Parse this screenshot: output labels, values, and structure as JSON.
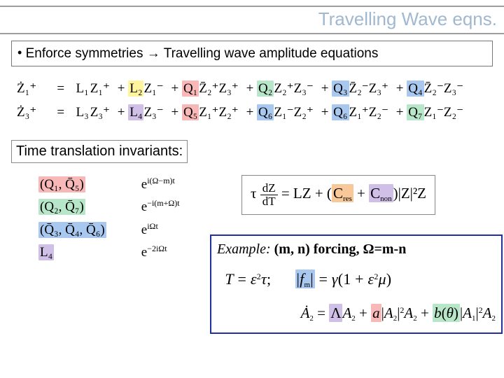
{
  "colors": {
    "title_text": "#a0b8d0",
    "rule": "#9e9e9e",
    "box_border": "#888888",
    "example_border": "#2030a0",
    "hl_yellow": "#fff59d",
    "hl_pink": "#f8b8b8",
    "hl_green": "#b8e6c8",
    "hl_blue": "#a8c8f0",
    "hl_purple": "#d0c0e8",
    "hl_orange": "#f8c898"
  },
  "title": "Travelling Wave eqns.",
  "bullet": {
    "lead": "Enforce symmetries",
    "arrow": "→",
    "tail": "Travelling wave amplitude equations"
  },
  "eqn1": {
    "lhs": "Ż₁⁺",
    "eq": "=",
    "t1": {
      "coef": "L₁",
      "color": "",
      "body": "Z₁⁺"
    },
    "t2": {
      "coef": "L₂",
      "color": "c-yellow",
      "body": "Z₁⁻"
    },
    "t3": {
      "coef": "Q₁",
      "color": "c-pink",
      "body": "Z̄₂⁺Z₃⁺"
    },
    "t4": {
      "coef": "Q₂",
      "color": "c-green",
      "body": "Z₂⁺Z₃⁻"
    },
    "t5": {
      "coef": "Q₃",
      "color": "c-blue",
      "body": "Z̄₂⁻Z₃⁺"
    },
    "t6": {
      "coef": "Q₄",
      "color": "c-blue",
      "body": "Z̄₂⁻Z₃⁻"
    }
  },
  "eqn2": {
    "lhs": "Ż₃⁺",
    "eq": "=",
    "t1": {
      "coef": "L₃",
      "color": "",
      "body": "Z₃⁺"
    },
    "t2": {
      "coef": "L₄",
      "color": "c-purple",
      "body": "Z₃⁻"
    },
    "t3": {
      "coef": "Q₅",
      "color": "c-pink",
      "body": "Z₁⁺Z₂⁺"
    },
    "t4": {
      "coef": "Q₆",
      "color": "c-blue",
      "body": "Z₁⁻Z₂⁺"
    },
    "t5": {
      "coef": "Q₆",
      "color": "c-blue",
      "body": "Z₁⁺Z₂⁻"
    },
    "t6": {
      "coef": "Q₇",
      "color": "c-green",
      "body": "Z₁⁻Z₂⁻"
    }
  },
  "invariants_label": "Time translation invariants:",
  "invariants": [
    {
      "group": "(Q₁, Q̄₅)",
      "color": "c-pink",
      "factor": "e^{ i(Ω−m)t }"
    },
    {
      "group": "(Q₂, Q̄₇)",
      "color": "c-green",
      "factor": "e^{ −i(m+Ω)t }"
    },
    {
      "group": "(Q̄₃, Q̄₄, Q̄₆)",
      "color": "c-blue",
      "factor": "e^{ iΩt }"
    },
    {
      "group": "L₄",
      "color": "c-purple",
      "factor": "e^{ −2iΩt }"
    }
  ],
  "main_eqn": {
    "pre": "τ",
    "frac_num": "dZ",
    "frac_den": "dT",
    "eq": "= LZ + (",
    "cres": "C_res",
    "plus": " + ",
    "cnon": "C_non",
    "tail": ")|Z|²Z",
    "cres_color": "c-orange",
    "cnon_color": "c-purple"
  },
  "example": {
    "title_ital": "Example:",
    "title_bold": " (m, n) forcing, Ω=m-n",
    "row1_left": "T = ε²τ;",
    "row1_right": "|f_m| = γ(1 + ε²μ)",
    "fm_color": "c-blue",
    "row2": {
      "lhs": "Ȧ₂ = ",
      "L": "Λ",
      "L_color": "c-purple",
      "A2": "A₂ + ",
      "a": "a",
      "a_color": "c-pink",
      "mid": "|A₂|²A₂ + b(θ)",
      "btheta_color": "c-green",
      "tail": "|A₁|²A₂"
    }
  }
}
